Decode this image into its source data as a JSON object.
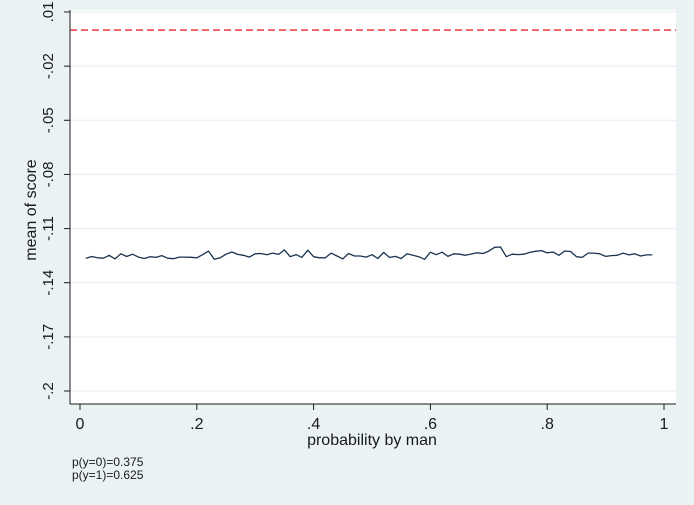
{
  "chart_data": {
    "type": "line",
    "title": "",
    "xlabel": "probability by man",
    "ylabel": "mean of score",
    "xlim": [
      0,
      1
    ],
    "ylim": [
      -0.2,
      0.01
    ],
    "x_ticks": [
      0,
      0.2,
      0.4,
      0.6,
      0.8,
      1
    ],
    "x_tick_labels": [
      "0",
      ".2",
      ".4",
      ".6",
      ".8",
      "1"
    ],
    "y_ticks": [
      0.01,
      -0.02,
      -0.05,
      -0.08,
      -0.11,
      -0.14,
      -0.17,
      -0.2
    ],
    "y_tick_labels": [
      ".01",
      "-.02",
      "-.05",
      "-.08",
      "-.11",
      "-.14",
      "-.17",
      "-.2"
    ],
    "grid": "horizontal",
    "reference_line": {
      "y": 0,
      "color": "#e8262b",
      "style": "dashed"
    },
    "series": [
      {
        "color": "#1a3350",
        "x": [
          0.01,
          0.02,
          0.03,
          0.04,
          0.05,
          0.06,
          0.07,
          0.08,
          0.09,
          0.1,
          0.11,
          0.12,
          0.13,
          0.14,
          0.15,
          0.16,
          0.17,
          0.18,
          0.19,
          0.2,
          0.21,
          0.22,
          0.23,
          0.24,
          0.25,
          0.26,
          0.27,
          0.28,
          0.29,
          0.3,
          0.31,
          0.32,
          0.33,
          0.34,
          0.35,
          0.36,
          0.37,
          0.38,
          0.39,
          0.4,
          0.41,
          0.42,
          0.43,
          0.44,
          0.45,
          0.46,
          0.47,
          0.48,
          0.49,
          0.5,
          0.51,
          0.52,
          0.53,
          0.54,
          0.55,
          0.56,
          0.57,
          0.58,
          0.59,
          0.6,
          0.61,
          0.62,
          0.63,
          0.64,
          0.65,
          0.66,
          0.67,
          0.68,
          0.69,
          0.7,
          0.71,
          0.72,
          0.73,
          0.74,
          0.75,
          0.76,
          0.77,
          0.78,
          0.79,
          0.8,
          0.81,
          0.82,
          0.83,
          0.84,
          0.85,
          0.86,
          0.87,
          0.88,
          0.89,
          0.9,
          0.91,
          0.92,
          0.93,
          0.94,
          0.95,
          0.96,
          0.97,
          0.98
        ],
        "y": [
          -0.1265,
          -0.1255,
          -0.1262,
          -0.1264,
          -0.1248,
          -0.1268,
          -0.124,
          -0.1255,
          -0.1242,
          -0.1258,
          -0.1266,
          -0.1256,
          -0.126,
          -0.125,
          -0.1264,
          -0.1267,
          -0.1258,
          -0.1258,
          -0.1259,
          -0.1262,
          -0.1245,
          -0.1225,
          -0.127,
          -0.1262,
          -0.1242,
          -0.123,
          -0.1243,
          -0.1248,
          -0.1258,
          -0.124,
          -0.1238,
          -0.1245,
          -0.1236,
          -0.1243,
          -0.1218,
          -0.1256,
          -0.1244,
          -0.126,
          -0.122,
          -0.1256,
          -0.1262,
          -0.1262,
          -0.1236,
          -0.1252,
          -0.1268,
          -0.1238,
          -0.1252,
          -0.1252,
          -0.1258,
          -0.1245,
          -0.1266,
          -0.1232,
          -0.126,
          -0.1254,
          -0.1266,
          -0.124,
          -0.1248,
          -0.1256,
          -0.127,
          -0.1231,
          -0.1245,
          -0.1231,
          -0.1254,
          -0.124,
          -0.1242,
          -0.1248,
          -0.1241,
          -0.1234,
          -0.1238,
          -0.1225,
          -0.1204,
          -0.1202,
          -0.1256,
          -0.1242,
          -0.1244,
          -0.1242,
          -0.1232,
          -0.1226,
          -0.1222,
          -0.1235,
          -0.123,
          -0.1248,
          -0.1224,
          -0.1227,
          -0.1256,
          -0.126,
          -0.1236,
          -0.1236,
          -0.124,
          -0.1254,
          -0.125,
          -0.1248,
          -0.1236,
          -0.1246,
          -0.124,
          -0.1252,
          -0.1246,
          -0.1246
        ]
      }
    ]
  },
  "notes": {
    "line1": "p(y=0)=0.375",
    "line2": "p(y=1)=0.625"
  }
}
